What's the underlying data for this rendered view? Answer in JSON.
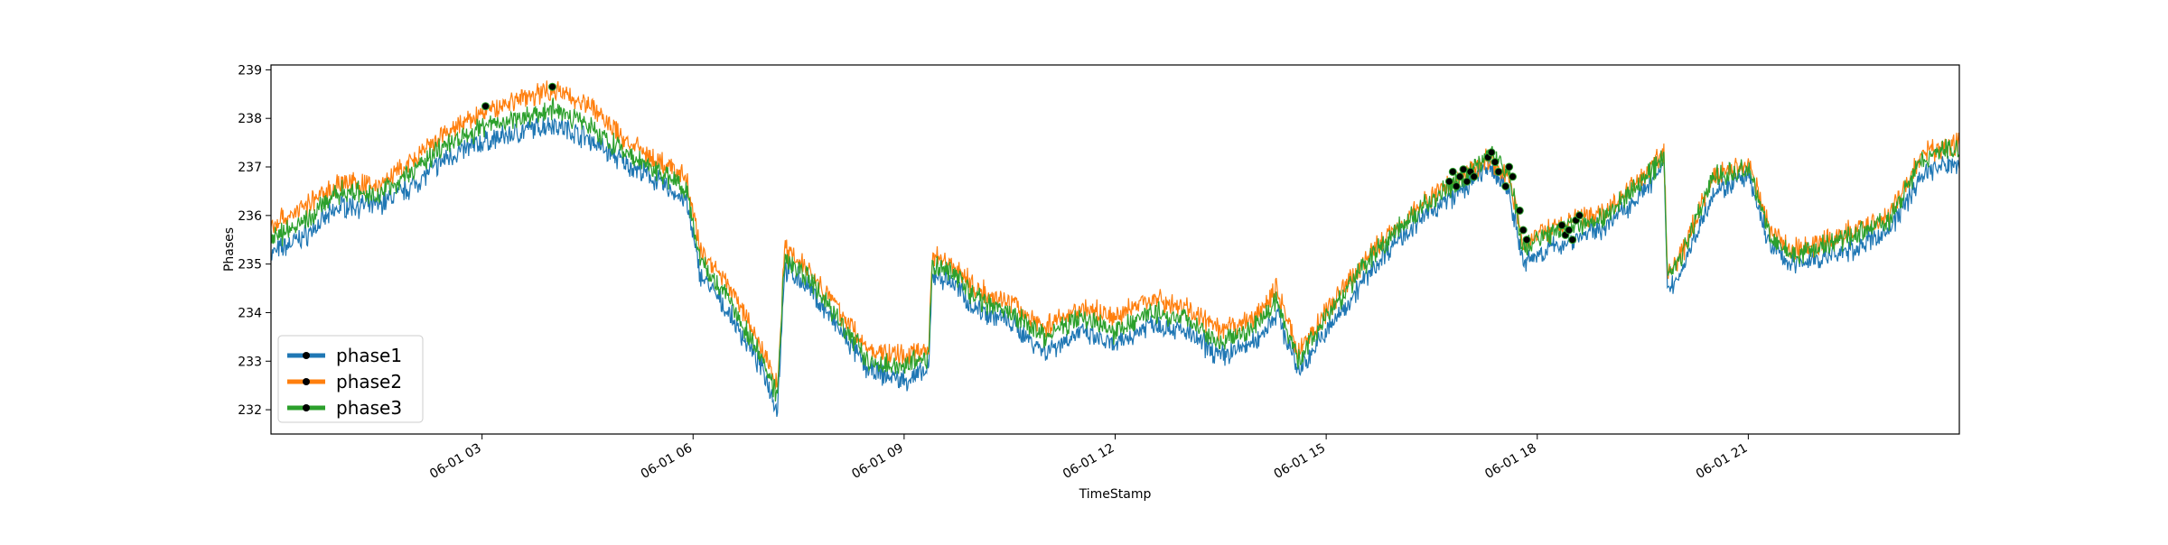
{
  "chart_data": {
    "type": "line",
    "title": "",
    "xlabel": "TimeStamp",
    "ylabel": "Phases",
    "ylim": [
      231.5,
      239.1
    ],
    "xlim_hours": [
      0,
      24
    ],
    "x_ticks": [
      {
        "x": 3,
        "label": "06-01 03"
      },
      {
        "x": 6,
        "label": "06-01 06"
      },
      {
        "x": 9,
        "label": "06-01 09"
      },
      {
        "x": 12,
        "label": "06-01 12"
      },
      {
        "x": 15,
        "label": "06-01 15"
      },
      {
        "x": 18,
        "label": "06-01 18"
      },
      {
        "x": 21,
        "label": "06-01 21"
      }
    ],
    "y_ticks": [
      232,
      233,
      234,
      235,
      236,
      237,
      238,
      239
    ],
    "grid": false,
    "legend": "lower-left",
    "colors": {
      "phase1": "#1f77b4",
      "phase2": "#ff7f0e",
      "phase3": "#2ca02c",
      "marker": "#000000"
    },
    "series": [
      {
        "name": "phase1",
        "color": "#1f77b4",
        "x": [
          0,
          0.5,
          1,
          1.5,
          2,
          2.5,
          3,
          3.5,
          4,
          4.5,
          5,
          5.5,
          5.9,
          6.1,
          6.5,
          7,
          7.2,
          7.3,
          7.6,
          8,
          8.5,
          9,
          9.35,
          9.4,
          9.7,
          10,
          10.5,
          11,
          11.5,
          12,
          12.5,
          13,
          13.5,
          14,
          14.3,
          14.6,
          15,
          15.5,
          16,
          16.5,
          17,
          17.3,
          17.6,
          17.8,
          18,
          18.5,
          19,
          19.5,
          19.8,
          19.85,
          20,
          20.5,
          21,
          21.3,
          21.6,
          22,
          22.5,
          23,
          23.5,
          24
        ],
        "y": [
          235.2,
          235.6,
          236.2,
          236.2,
          236.6,
          237.2,
          237.5,
          237.7,
          237.9,
          237.6,
          237.1,
          236.7,
          236.3,
          234.8,
          234.0,
          232.8,
          232.0,
          234.9,
          234.6,
          233.8,
          232.8,
          232.6,
          232.8,
          234.8,
          234.6,
          234.1,
          233.8,
          233.2,
          233.6,
          233.3,
          233.8,
          233.6,
          233.1,
          233.4,
          234.0,
          232.8,
          233.6,
          234.6,
          235.5,
          236.1,
          236.6,
          237.0,
          236.5,
          235.0,
          235.2,
          235.5,
          235.8,
          236.5,
          237.0,
          234.5,
          234.7,
          236.5,
          236.8,
          235.4,
          235.0,
          235.1,
          235.3,
          235.7,
          236.9,
          237.1
        ]
      },
      {
        "name": "phase2",
        "color": "#ff7f0e",
        "x": [
          0,
          0.5,
          1,
          1.5,
          2,
          2.5,
          3,
          3.5,
          4,
          4.5,
          5,
          5.5,
          5.9,
          6.1,
          6.5,
          7,
          7.2,
          7.3,
          7.6,
          8,
          8.5,
          9,
          9.35,
          9.4,
          9.7,
          10,
          10.5,
          11,
          11.5,
          12,
          12.5,
          13,
          13.5,
          14,
          14.3,
          14.6,
          15,
          15.5,
          16,
          16.5,
          17,
          17.3,
          17.6,
          17.8,
          18,
          18.5,
          19,
          19.5,
          19.8,
          19.85,
          20,
          20.5,
          21,
          21.3,
          21.6,
          22,
          22.5,
          23,
          23.5,
          24
        ],
        "y": [
          235.8,
          236.2,
          236.7,
          236.6,
          237.1,
          237.7,
          238.1,
          238.4,
          238.6,
          238.3,
          237.6,
          237.1,
          236.8,
          235.3,
          234.6,
          233.2,
          232.5,
          235.3,
          235.0,
          234.2,
          233.2,
          233.1,
          233.3,
          235.2,
          235.0,
          234.5,
          234.2,
          233.7,
          234.1,
          233.9,
          234.3,
          234.1,
          233.6,
          233.9,
          234.5,
          233.2,
          234.0,
          235.0,
          235.8,
          236.4,
          236.9,
          237.2,
          236.8,
          235.4,
          235.6,
          235.9,
          236.1,
          236.8,
          237.3,
          234.9,
          235.0,
          236.8,
          237.1,
          235.7,
          235.3,
          235.4,
          235.7,
          236.0,
          237.3,
          237.5
        ]
      },
      {
        "name": "phase3",
        "color": "#2ca02c",
        "x": [
          0,
          0.5,
          1,
          1.5,
          2,
          2.5,
          3,
          3.5,
          4,
          4.5,
          5,
          5.5,
          5.9,
          6.1,
          6.5,
          7,
          7.2,
          7.3,
          7.6,
          8,
          8.5,
          9,
          9.35,
          9.4,
          9.7,
          10,
          10.5,
          11,
          11.5,
          12,
          12.5,
          13,
          13.5,
          14,
          14.3,
          14.6,
          15,
          15.5,
          16,
          16.5,
          17,
          17.3,
          17.6,
          17.8,
          18,
          18.5,
          19,
          19.5,
          19.8,
          19.85,
          20,
          20.5,
          21,
          21.3,
          21.6,
          22,
          22.5,
          23,
          23.5,
          24
        ],
        "y": [
          235.5,
          235.9,
          236.5,
          236.4,
          236.9,
          237.5,
          237.8,
          238.0,
          238.2,
          237.9,
          237.3,
          236.9,
          236.6,
          235.1,
          234.3,
          233.0,
          232.3,
          235.1,
          234.8,
          234.0,
          233.0,
          232.9,
          233.1,
          235.0,
          234.8,
          234.3,
          234.0,
          233.5,
          233.9,
          233.6,
          234.0,
          233.9,
          233.4,
          233.7,
          234.3,
          233.0,
          233.9,
          234.9,
          235.7,
          236.3,
          236.8,
          237.3,
          236.9,
          235.3,
          235.5,
          235.8,
          236.0,
          236.7,
          237.2,
          234.9,
          235.0,
          236.8,
          237.0,
          235.6,
          235.2,
          235.3,
          235.6,
          235.9,
          237.2,
          237.4
        ]
      }
    ],
    "anomaly_points": {
      "x": [
        3.05,
        4.0,
        16.75,
        16.8,
        16.85,
        16.9,
        16.95,
        17.0,
        17.05,
        17.1,
        17.3,
        17.35,
        17.4,
        17.45,
        17.55,
        17.6,
        17.65,
        17.75,
        17.8,
        17.85,
        18.35,
        18.4,
        18.45,
        18.5,
        18.55,
        18.6
      ],
      "y": [
        238.25,
        238.65,
        236.7,
        236.9,
        236.6,
        236.8,
        236.95,
        236.7,
        236.9,
        236.8,
        237.2,
        237.3,
        237.1,
        236.9,
        236.6,
        237.0,
        236.8,
        236.1,
        235.7,
        235.5,
        235.8,
        235.6,
        235.7,
        235.5,
        235.9,
        236.0
      ]
    }
  }
}
